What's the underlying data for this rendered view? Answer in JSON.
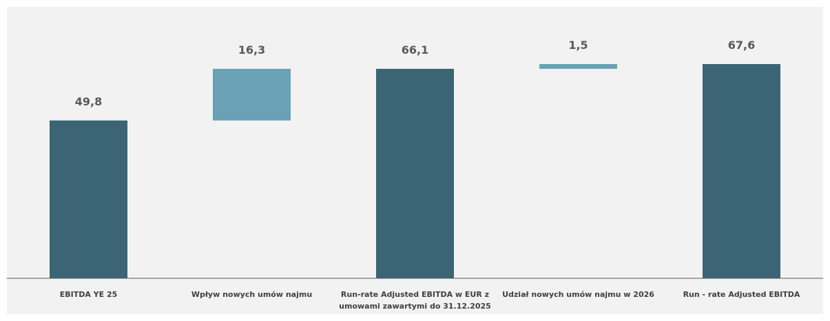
{
  "chart_data": {
    "type": "bar",
    "subtype": "waterfall",
    "categories": [
      "EBITDA YE 25",
      "Wpływ nowych umów najmu",
      "Run-rate Adjusted EBITDA w EUR z umowami zawartymi do 31.12.2025",
      "Udział nowych umów najmu w 2026",
      "Run - rate Adjusted EBITDA"
    ],
    "category_lines": [
      [
        "EBITDA YE 25"
      ],
      [
        "Wpływ nowych umów najmu"
      ],
      [
        "Run-rate Adjusted EBITDA w EUR z",
        "umowami zawartymi do 31.12.2025"
      ],
      [
        "Udział nowych umów najmu w 2026"
      ],
      [
        "Run - rate Adjusted EBITDA"
      ]
    ],
    "values": [
      49.8,
      16.3,
      66.1,
      1.5,
      67.6
    ],
    "value_labels": [
      "49,8",
      "16,3",
      "66,1",
      "1,5",
      "67,6"
    ],
    "bar_kind": [
      "total",
      "increase",
      "total",
      "increase",
      "total"
    ],
    "title": "",
    "xlabel": "",
    "ylabel": "",
    "ylim": [
      0,
      84
    ],
    "grid": false,
    "legend": "none",
    "colors": {
      "total": "#3b6474",
      "increase": "#6ba1b5",
      "axis": "#595959",
      "value_text": "#595959",
      "category_text": "#404040",
      "background": "#f2f2f2"
    }
  }
}
